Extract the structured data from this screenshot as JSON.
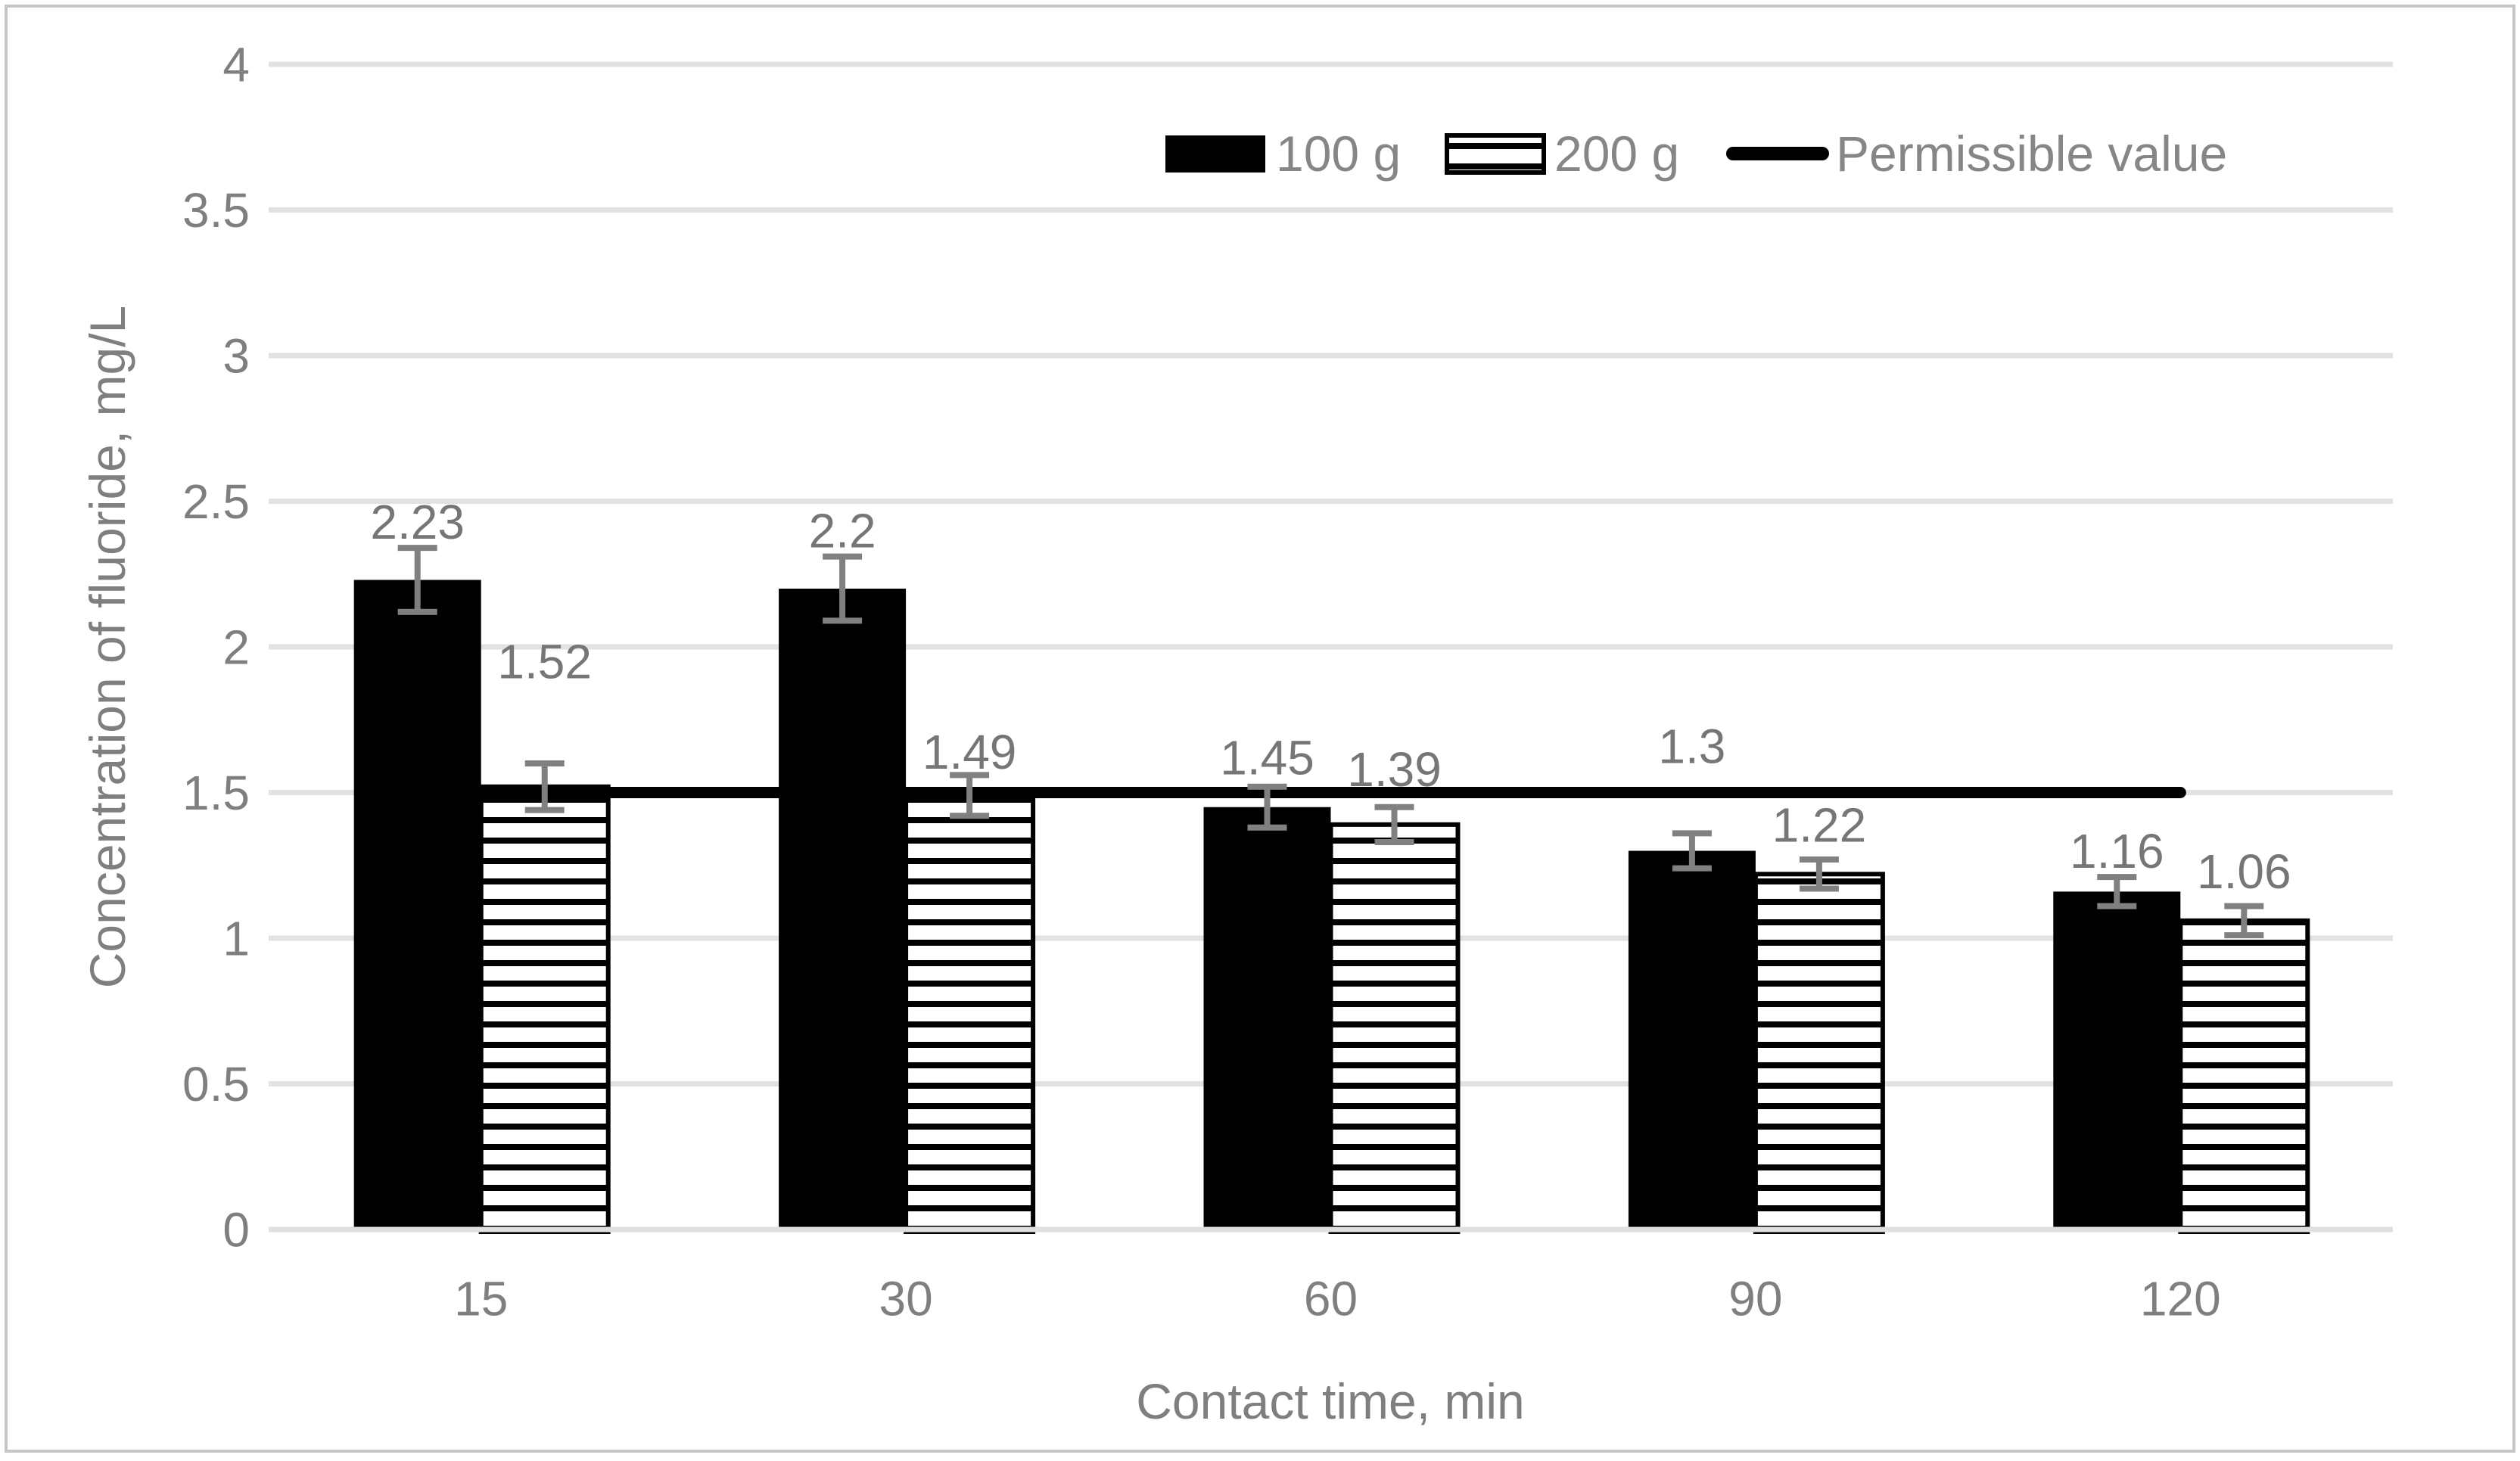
{
  "chart_data": {
    "type": "bar",
    "title": "",
    "xlabel": "Contact time, min",
    "ylabel": "Concentration of fluoride, mg/L",
    "categories": [
      "15",
      "30",
      "60",
      "90",
      "120"
    ],
    "series": [
      {
        "name": "100 g",
        "style": "solid-black",
        "values": [
          2.23,
          2.2,
          1.45,
          1.3,
          1.16
        ],
        "errors": [
          0.11,
          0.11,
          0.07,
          0.06,
          0.05
        ],
        "data_labels": [
          "2.23",
          "2.2",
          "1.45",
          "1.3",
          "1.16"
        ]
      },
      {
        "name": "200 g",
        "style": "horizontal-stripes",
        "values": [
          1.52,
          1.49,
          1.39,
          1.22,
          1.06
        ],
        "errors": [
          0.08,
          0.07,
          0.06,
          0.05,
          0.05
        ],
        "data_labels": [
          "1.52",
          "1.49",
          "1.39",
          "1.22",
          "1.06"
        ]
      }
    ],
    "reference_line": {
      "name": "Permissible value",
      "value": 1.5
    },
    "y_axis": {
      "min": 0,
      "max": 4,
      "step": 0.5,
      "tick_labels": [
        "0",
        "0.5",
        "1",
        "1.5",
        "2",
        "2.5",
        "3",
        "3.5",
        "4"
      ]
    },
    "legend": {
      "position": "top",
      "items": [
        "100 g",
        "200 g",
        "Permissible value"
      ]
    },
    "layout_hints": {
      "grid": true,
      "legend_position": "top-right",
      "bar_color": "#000000",
      "stripe_fill": "#ffffff",
      "stripe_color": "#000000",
      "text_color": "#7f7f7f",
      "grid_color": "#e2e2e2",
      "axis_line_color": "#e0e0e0",
      "error_bar_color": "#808080",
      "reference_line_color": "#000000",
      "frame_color": "#c6c6c6",
      "label_y": [
        [
          2.43,
          2.4,
          1.62,
          1.66,
          1.3
        ],
        [
          1.95,
          1.64,
          1.58,
          1.39,
          1.23
        ]
      ]
    }
  }
}
